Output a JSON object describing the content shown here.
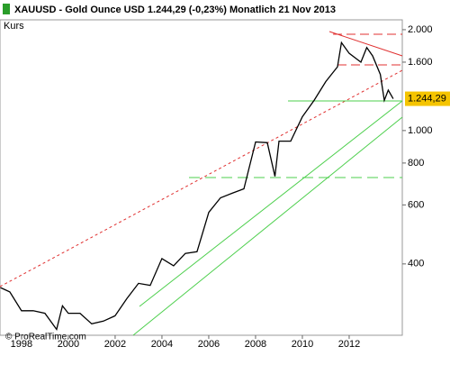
{
  "chart_data": {
    "type": "line",
    "title": "XAUUSD - Gold Ounce USD   1.244,29 (-0,23%)   Monatlich  21 Nov 2013",
    "y_label": "Kurs",
    "credit": "© ProRealTime.com",
    "last_price_label": "1.244,29",
    "log_scale": true,
    "color": "#000000",
    "x": [
      1997.1,
      1997.5,
      1998.0,
      1998.5,
      1999.0,
      1999.5,
      1999.75,
      2000.0,
      2000.5,
      2001.0,
      2001.5,
      2002.0,
      2002.5,
      2003.0,
      2003.5,
      2004.0,
      2004.5,
      2005.0,
      2005.5,
      2006.0,
      2006.5,
      2007.0,
      2007.5,
      2008.0,
      2008.5,
      2008.83,
      2009.0,
      2009.5,
      2010.0,
      2010.5,
      2011.0,
      2011.5,
      2011.67,
      2012.0,
      2012.5,
      2012.75,
      2013.0,
      2013.33,
      2013.5,
      2013.67,
      2013.88
    ],
    "values": [
      340,
      330,
      290,
      290,
      285,
      255,
      300,
      285,
      285,
      265,
      270,
      280,
      315,
      350,
      345,
      415,
      395,
      430,
      435,
      570,
      630,
      650,
      670,
      925,
      920,
      730,
      930,
      930,
      1100,
      1230,
      1400,
      1550,
      1830,
      1700,
      1600,
      1770,
      1670,
      1470,
      1230,
      1320,
      1244.29
    ],
    "xlim": [
      1997.08,
      2014.27
    ],
    "xticks": [
      1998,
      2000,
      2002,
      2004,
      2006,
      2008,
      2010,
      2012
    ],
    "ylim": [
      245,
      2140
    ],
    "yticks": [
      {
        "value": 2000,
        "label": "2.000"
      },
      {
        "value": 1600,
        "label": "1.600"
      },
      {
        "value": 1000,
        "label": "1.000"
      },
      800,
      600,
      400
    ]
  }
}
